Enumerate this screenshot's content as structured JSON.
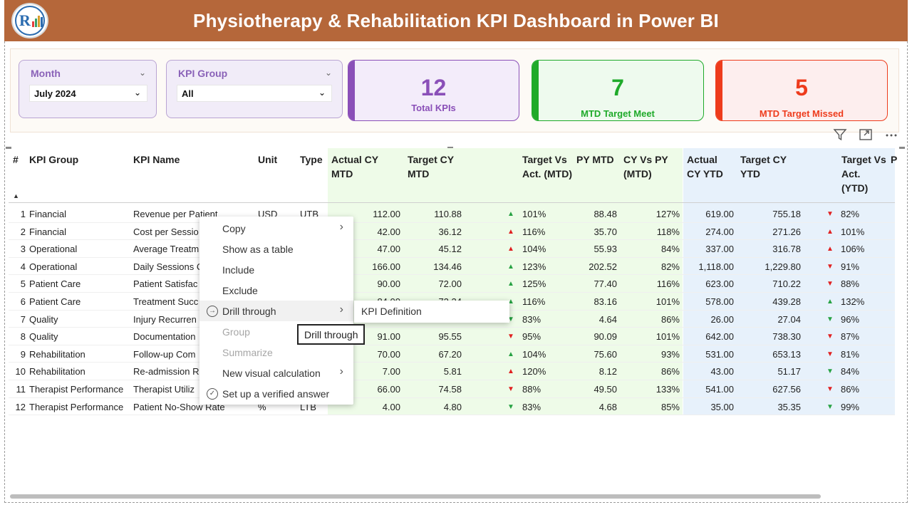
{
  "header": {
    "title": "Physiotherapy & Rehabilitation KPI Dashboard in Power BI"
  },
  "slicers": {
    "month": {
      "label": "Month",
      "value": "July 2024"
    },
    "kpi_group": {
      "label": "KPI Group",
      "value": "All"
    }
  },
  "cards": {
    "total": {
      "value": "12",
      "caption": "Total KPIs",
      "color": "#8a4fb8"
    },
    "meet": {
      "value": "7",
      "caption": "MTD Target Meet",
      "color": "#1faa2a"
    },
    "missed": {
      "value": "5",
      "caption": "MTD Target Missed",
      "color": "#ee3b1c"
    }
  },
  "toolbar": {
    "icons": [
      "filter-icon",
      "focus-mode-icon",
      "more-options-icon"
    ]
  },
  "table": {
    "headers": {
      "num": "#",
      "group": "KPI Group",
      "name": "KPI Name",
      "unit": "Unit",
      "type": "Type",
      "act_mtd": "Actual CY MTD",
      "tgt_mtd": "Target CY MTD",
      "tva_mtd": "Target Vs Act. (MTD)",
      "py_mtd": "PY MTD",
      "cvp_mtd": "CY Vs PY (MTD)",
      "act_ytd": "Actual CY YTD",
      "tgt_ytd": "Target CY YTD",
      "tva_ytd": "Target Vs Act. (YTD)",
      "more": "P"
    },
    "rows": [
      {
        "n": "1",
        "group": "Financial",
        "name": "Revenue per Patient",
        "unit": "USD",
        "type": "UTB",
        "act": "112.00",
        "tgt": "110.88",
        "ind": "up",
        "tva": "101%",
        "py": "88.48",
        "cvp": "127%",
        "aytd": "619.00",
        "tytd": "755.18",
        "indy": "dn",
        "tvay": "82%"
      },
      {
        "n": "2",
        "group": "Financial",
        "name": "Cost per Sessio",
        "unit": "",
        "type": "",
        "act": "42.00",
        "tgt": "36.12",
        "ind": "upred",
        "tva": "116%",
        "py": "35.70",
        "cvp": "118%",
        "aytd": "274.00",
        "tytd": "271.26",
        "indy": "upred",
        "tvay": "101%"
      },
      {
        "n": "3",
        "group": "Operational",
        "name": "Average Treatm",
        "unit": "",
        "type": "",
        "act": "47.00",
        "tgt": "45.12",
        "ind": "upred",
        "tva": "104%",
        "py": "55.93",
        "cvp": "84%",
        "aytd": "337.00",
        "tytd": "316.78",
        "indy": "upred",
        "tvay": "106%"
      },
      {
        "n": "4",
        "group": "Operational",
        "name": "Daily Sessions C",
        "unit": "",
        "type": "",
        "act": "166.00",
        "tgt": "134.46",
        "ind": "up",
        "tva": "123%",
        "py": "202.52",
        "cvp": "82%",
        "aytd": "1,118.00",
        "tytd": "1,229.80",
        "indy": "dn",
        "tvay": "91%"
      },
      {
        "n": "5",
        "group": "Patient Care",
        "name": "Patient Satisfac",
        "unit": "",
        "type": "",
        "act": "90.00",
        "tgt": "72.00",
        "ind": "up",
        "tva": "125%",
        "py": "77.40",
        "cvp": "116%",
        "aytd": "623.00",
        "tytd": "710.22",
        "indy": "dn",
        "tvay": "88%"
      },
      {
        "n": "6",
        "group": "Patient Care",
        "name": "Treatment Succ",
        "unit": "",
        "type": "",
        "act": "84.00",
        "tgt": "72.24",
        "ind": "up",
        "tva": "116%",
        "py": "83.16",
        "cvp": "101%",
        "aytd": "578.00",
        "tytd": "439.28",
        "indy": "up",
        "tvay": "132%"
      },
      {
        "n": "7",
        "group": "Quality",
        "name": "Injury Recurren",
        "unit": "",
        "type": "",
        "act": "",
        "tgt": "",
        "ind": "dngreen",
        "tva": "83%",
        "py": "4.64",
        "cvp": "86%",
        "aytd": "26.00",
        "tytd": "27.04",
        "indy": "dngreen",
        "tvay": "96%"
      },
      {
        "n": "8",
        "group": "Quality",
        "name": "Documentation",
        "unit": "",
        "type": "",
        "act": "91.00",
        "tgt": "95.55",
        "ind": "dn",
        "tva": "95%",
        "py": "90.09",
        "cvp": "101%",
        "aytd": "642.00",
        "tytd": "738.30",
        "indy": "dn",
        "tvay": "87%"
      },
      {
        "n": "9",
        "group": "Rehabilitation",
        "name": "Follow-up Com",
        "unit": "",
        "type": "",
        "act": "70.00",
        "tgt": "67.20",
        "ind": "up",
        "tva": "104%",
        "py": "75.60",
        "cvp": "93%",
        "aytd": "531.00",
        "tytd": "653.13",
        "indy": "dn",
        "tvay": "81%"
      },
      {
        "n": "10",
        "group": "Rehabilitation",
        "name": "Re-admission R",
        "unit": "",
        "type": "",
        "act": "7.00",
        "tgt": "5.81",
        "ind": "upred",
        "tva": "120%",
        "py": "8.12",
        "cvp": "86%",
        "aytd": "43.00",
        "tytd": "51.17",
        "indy": "dngreen",
        "tvay": "84%"
      },
      {
        "n": "11",
        "group": "Therapist Performance",
        "name": "Therapist Utiliz",
        "unit": "",
        "type": "",
        "act": "66.00",
        "tgt": "74.58",
        "ind": "dn",
        "tva": "88%",
        "py": "49.50",
        "cvp": "133%",
        "aytd": "541.00",
        "tytd": "627.56",
        "indy": "dn",
        "tvay": "86%"
      },
      {
        "n": "12",
        "group": "Therapist Performance",
        "name": "Patient No-Show Rate",
        "unit": "%",
        "type": "LTB",
        "act": "4.00",
        "tgt": "4.80",
        "ind": "dngreen",
        "tva": "83%",
        "py": "4.68",
        "cvp": "85%",
        "aytd": "35.00",
        "tytd": "35.35",
        "indy": "dngreen",
        "tvay": "99%"
      }
    ]
  },
  "context_menu": {
    "items": [
      {
        "label": "Copy",
        "submenu": true,
        "disabled": false,
        "icon": ""
      },
      {
        "label": "Show as a table",
        "submenu": false,
        "disabled": false,
        "icon": ""
      },
      {
        "label": "Include",
        "submenu": false,
        "disabled": false,
        "icon": ""
      },
      {
        "label": "Exclude",
        "submenu": false,
        "disabled": false,
        "icon": ""
      },
      {
        "label": "Drill through",
        "submenu": true,
        "disabled": false,
        "icon": "drill-through-icon"
      },
      {
        "label": "Group",
        "submenu": false,
        "disabled": true,
        "icon": ""
      },
      {
        "label": "Summarize",
        "submenu": false,
        "disabled": true,
        "icon": ""
      },
      {
        "label": "New visual calculation",
        "submenu": true,
        "disabled": false,
        "icon": ""
      },
      {
        "label": "Set up a verified answer",
        "submenu": false,
        "disabled": false,
        "icon": "verified-answer-icon"
      }
    ],
    "submenu_item": "KPI Definition",
    "tooltip": "Drill through"
  }
}
